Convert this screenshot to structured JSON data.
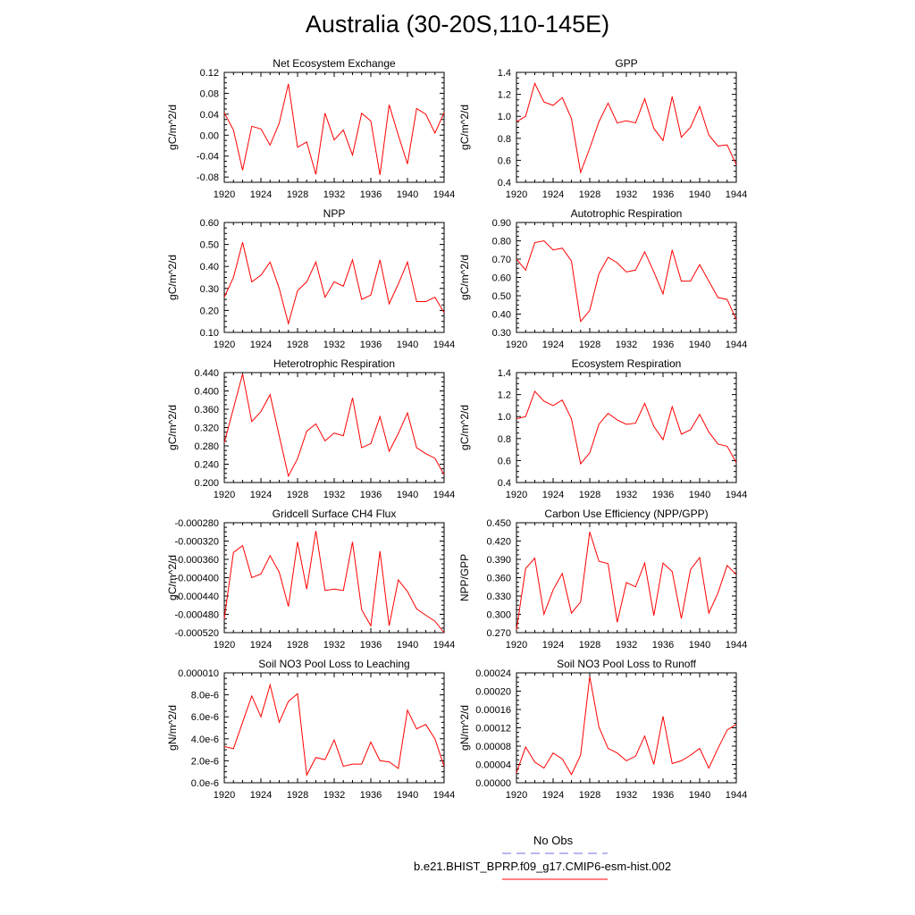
{
  "title": "Australia (30-20S,110-145E)",
  "colors": {
    "model_line": "#ff0000",
    "obs_line": "#6f6fe0",
    "axis": "#000000"
  },
  "legend": {
    "obs_label": "No Obs",
    "model_label": "b.e21.BHIST_BPRP.f09_g17.CMIP6-esm-hist.002"
  },
  "chart_data": [
    {
      "type": "line",
      "title": "Net Ecosystem Exchange",
      "ylabel": "gC/m^2/d",
      "xlim": [
        1920,
        1944
      ],
      "ylim": [
        -0.09,
        0.12
      ],
      "xticks": [
        "1920",
        "1924",
        "1928",
        "1932",
        "1936",
        "1940",
        "1944"
      ],
      "yticks": [
        "-0.08",
        "-0.04",
        "0.00",
        "0.04",
        "0.08",
        "0.12"
      ],
      "x": [
        1920,
        1921,
        1922,
        1923,
        1924,
        1925,
        1926,
        1927,
        1928,
        1929,
        1930,
        1931,
        1932,
        1933,
        1934,
        1935,
        1936,
        1937,
        1938,
        1939,
        1940,
        1941,
        1942,
        1943,
        1944
      ],
      "series": [
        {
          "values": [
            0.043,
            0.01,
            -0.067,
            0.017,
            0.012,
            -0.019,
            0.023,
            0.098,
            -0.023,
            -0.013,
            -0.075,
            0.042,
            -0.009,
            0.01,
            -0.038,
            0.042,
            0.027,
            -0.076,
            0.058,
            0.0,
            -0.055,
            0.051,
            0.04,
            0.004,
            0.043
          ]
        }
      ]
    },
    {
      "type": "line",
      "title": "GPP",
      "ylabel": "gC/m^2/d",
      "xlim": [
        1920,
        1944
      ],
      "ylim": [
        0.4,
        1.4
      ],
      "xticks": [
        "1920",
        "1924",
        "1928",
        "1932",
        "1936",
        "1940",
        "1944"
      ],
      "yticks": [
        "0.4",
        "0.6",
        "0.8",
        "1.0",
        "1.2",
        "1.4"
      ],
      "x": [
        1920,
        1921,
        1922,
        1923,
        1924,
        1925,
        1926,
        1927,
        1928,
        1929,
        1930,
        1931,
        1932,
        1933,
        1934,
        1935,
        1936,
        1937,
        1938,
        1939,
        1940,
        1941,
        1942,
        1943,
        1944
      ],
      "series": [
        {
          "values": [
            0.95,
            1.0,
            1.3,
            1.13,
            1.1,
            1.17,
            0.98,
            0.49,
            0.71,
            0.95,
            1.12,
            0.94,
            0.96,
            0.94,
            1.16,
            0.89,
            0.78,
            1.18,
            0.81,
            0.9,
            1.09,
            0.83,
            0.73,
            0.74,
            0.56
          ]
        }
      ]
    },
    {
      "type": "line",
      "title": "NPP",
      "ylabel": "gC/m^2/d",
      "xlim": [
        1920,
        1944
      ],
      "ylim": [
        0.1,
        0.6
      ],
      "xticks": [
        "1920",
        "1924",
        "1928",
        "1932",
        "1936",
        "1940",
        "1944"
      ],
      "yticks": [
        "0.10",
        "0.20",
        "0.30",
        "0.40",
        "0.50",
        "0.60"
      ],
      "x": [
        1920,
        1921,
        1922,
        1923,
        1924,
        1925,
        1926,
        1927,
        1928,
        1929,
        1930,
        1931,
        1932,
        1933,
        1934,
        1935,
        1936,
        1937,
        1938,
        1939,
        1940,
        1941,
        1942,
        1943,
        1944
      ],
      "series": [
        {
          "values": [
            0.26,
            0.35,
            0.51,
            0.33,
            0.36,
            0.42,
            0.3,
            0.14,
            0.29,
            0.33,
            0.42,
            0.26,
            0.33,
            0.31,
            0.43,
            0.25,
            0.27,
            0.43,
            0.23,
            0.32,
            0.42,
            0.24,
            0.24,
            0.26,
            0.19
          ]
        }
      ]
    },
    {
      "type": "line",
      "title": "Autotrophic Respiration",
      "ylabel": "gC/m^2/d",
      "xlim": [
        1920,
        1944
      ],
      "ylim": [
        0.3,
        0.9
      ],
      "xticks": [
        "1920",
        "1924",
        "1928",
        "1932",
        "1936",
        "1940",
        "1944"
      ],
      "yticks": [
        "0.30",
        "0.40",
        "0.50",
        "0.60",
        "0.70",
        "0.80",
        "0.90"
      ],
      "x": [
        1920,
        1921,
        1922,
        1923,
        1924,
        1925,
        1926,
        1927,
        1928,
        1929,
        1930,
        1931,
        1932,
        1933,
        1934,
        1935,
        1936,
        1937,
        1938,
        1939,
        1940,
        1941,
        1942,
        1943,
        1944
      ],
      "series": [
        {
          "values": [
            0.7,
            0.64,
            0.79,
            0.8,
            0.75,
            0.76,
            0.69,
            0.36,
            0.42,
            0.62,
            0.71,
            0.68,
            0.63,
            0.64,
            0.74,
            0.63,
            0.51,
            0.75,
            0.58,
            0.58,
            0.67,
            0.58,
            0.49,
            0.48,
            0.37
          ]
        }
      ]
    },
    {
      "type": "line",
      "title": "Heterotrophic Respiration",
      "ylabel": "gC/m^2/d",
      "xlim": [
        1920,
        1944
      ],
      "ylim": [
        0.2,
        0.44
      ],
      "xticks": [
        "1920",
        "1924",
        "1928",
        "1932",
        "1936",
        "1940",
        "1944"
      ],
      "yticks": [
        "0.200",
        "0.240",
        "0.280",
        "0.320",
        "0.360",
        "0.400",
        "0.440"
      ],
      "x": [
        1920,
        1921,
        1922,
        1923,
        1924,
        1925,
        1926,
        1927,
        1928,
        1929,
        1930,
        1931,
        1932,
        1933,
        1934,
        1935,
        1936,
        1937,
        1938,
        1939,
        1940,
        1941,
        1942,
        1943,
        1944
      ],
      "series": [
        {
          "values": [
            0.287,
            0.362,
            0.437,
            0.333,
            0.355,
            0.392,
            0.302,
            0.214,
            0.252,
            0.312,
            0.328,
            0.291,
            0.308,
            0.302,
            0.385,
            0.276,
            0.285,
            0.344,
            0.268,
            0.307,
            0.352,
            0.276,
            0.263,
            0.253,
            0.217
          ]
        }
      ]
    },
    {
      "type": "line",
      "title": "Ecosystem Respiration",
      "ylabel": "gC/m^2/d",
      "xlim": [
        1920,
        1944
      ],
      "ylim": [
        0.4,
        1.4
      ],
      "xticks": [
        "1920",
        "1924",
        "1928",
        "1932",
        "1936",
        "1940",
        "1944"
      ],
      "yticks": [
        "0.4",
        "0.6",
        "0.8",
        "1.0",
        "1.2",
        "1.4"
      ],
      "x": [
        1920,
        1921,
        1922,
        1923,
        1924,
        1925,
        1926,
        1927,
        1928,
        1929,
        1930,
        1931,
        1932,
        1933,
        1934,
        1935,
        1936,
        1937,
        1938,
        1939,
        1940,
        1941,
        1942,
        1943,
        1944
      ],
      "series": [
        {
          "values": [
            0.98,
            1.0,
            1.23,
            1.14,
            1.1,
            1.15,
            0.98,
            0.57,
            0.67,
            0.93,
            1.03,
            0.97,
            0.93,
            0.94,
            1.12,
            0.91,
            0.79,
            1.09,
            0.84,
            0.88,
            1.02,
            0.86,
            0.75,
            0.73,
            0.58
          ]
        }
      ]
    },
    {
      "type": "line",
      "title": "Gridcell Surface CH4 Flux",
      "ylabel": "gC/m^2/d",
      "xlim": [
        1920,
        1944
      ],
      "ylim": [
        -0.00052,
        -0.00028
      ],
      "xticks": [
        "1920",
        "1924",
        "1928",
        "1932",
        "1936",
        "1940",
        "1944"
      ],
      "yticks": [
        "-0.000520",
        "-0.000480",
        "-0.000440",
        "-0.000400",
        "-0.000360",
        "-0.000320",
        "-0.000280"
      ],
      "x": [
        1920,
        1921,
        1922,
        1923,
        1924,
        1925,
        1926,
        1927,
        1928,
        1929,
        1930,
        1931,
        1932,
        1933,
        1934,
        1935,
        1936,
        1937,
        1938,
        1939,
        1940,
        1941,
        1942,
        1943,
        1944
      ],
      "series": [
        {
          "values": [
            -0.00049,
            -0.000345,
            -0.00033,
            -0.0004,
            -0.000392,
            -0.000352,
            -0.000388,
            -0.000463,
            -0.000322,
            -0.000425,
            -0.000298,
            -0.000428,
            -0.000425,
            -0.000428,
            -0.000322,
            -0.00047,
            -0.000505,
            -0.000342,
            -0.000505,
            -0.000405,
            -0.00043,
            -0.000468,
            -0.000482,
            -0.000495,
            -0.00052
          ]
        }
      ]
    },
    {
      "type": "line",
      "title": "Carbon Use Efficiency (NPP/GPP)",
      "ylabel": "NPP/GPP",
      "xlim": [
        1920,
        1944
      ],
      "ylim": [
        0.27,
        0.45
      ],
      "xticks": [
        "1920",
        "1924",
        "1928",
        "1932",
        "1936",
        "1940",
        "1944"
      ],
      "yticks": [
        "0.270",
        "0.300",
        "0.330",
        "0.360",
        "0.390",
        "0.420",
        "0.450"
      ],
      "x": [
        1920,
        1921,
        1922,
        1923,
        1924,
        1925,
        1926,
        1927,
        1928,
        1929,
        1930,
        1931,
        1932,
        1933,
        1934,
        1935,
        1936,
        1937,
        1938,
        1939,
        1940,
        1941,
        1942,
        1943,
        1944
      ],
      "series": [
        {
          "values": [
            0.275,
            0.375,
            0.392,
            0.3,
            0.34,
            0.367,
            0.302,
            0.32,
            0.435,
            0.387,
            0.383,
            0.287,
            0.352,
            0.345,
            0.384,
            0.298,
            0.384,
            0.37,
            0.293,
            0.373,
            0.393,
            0.302,
            0.335,
            0.38,
            0.365
          ]
        }
      ]
    },
    {
      "type": "line",
      "title": "Soil NO3 Pool Loss to Leaching",
      "ylabel": "gN/m^2/d",
      "xlim": [
        1920,
        1944
      ],
      "ylim": [
        0,
        1e-05
      ],
      "xticks": [
        "1920",
        "1924",
        "1928",
        "1932",
        "1936",
        "1940",
        "1944"
      ],
      "yticks": [
        "0.0e-6",
        "2.0e-6",
        "4.0e-6",
        "6.0e-6",
        "8.0e-6",
        "0.000010"
      ],
      "x": [
        1920,
        1921,
        1922,
        1923,
        1924,
        1925,
        1926,
        1927,
        1928,
        1929,
        1930,
        1931,
        1932,
        1933,
        1934,
        1935,
        1936,
        1937,
        1938,
        1939,
        1940,
        1941,
        1942,
        1943,
        1944
      ],
      "series": [
        {
          "values": [
            3.3e-06,
            3.1e-06,
            5.5e-06,
            7.9e-06,
            6e-06,
            8.9e-06,
            5.5e-06,
            7.4e-06,
            8.1e-06,
            7e-07,
            2.3e-06,
            2.1e-06,
            3.9e-06,
            1.5e-06,
            1.7e-06,
            1.7e-06,
            3.7e-06,
            2e-06,
            1.9e-06,
            1.3e-06,
            6.6e-06,
            4.9e-06,
            5.3e-06,
            4e-06,
            1.5e-06
          ]
        }
      ]
    },
    {
      "type": "line",
      "title": "Soil NO3 Pool Loss to Runoff",
      "ylabel": "gN/m^2/d",
      "xlim": [
        1920,
        1944
      ],
      "ylim": [
        0,
        0.00024
      ],
      "xticks": [
        "1920",
        "1924",
        "1928",
        "1932",
        "1936",
        "1940",
        "1944"
      ],
      "yticks": [
        "0.00000",
        "0.00004",
        "0.00008",
        "0.00012",
        "0.00016",
        "0.00020",
        "0.00024"
      ],
      "x": [
        1920,
        1921,
        1922,
        1923,
        1924,
        1925,
        1926,
        1927,
        1928,
        1929,
        1930,
        1931,
        1932,
        1933,
        1934,
        1935,
        1936,
        1937,
        1938,
        1939,
        1940,
        1941,
        1942,
        1943,
        1944
      ],
      "series": [
        {
          "values": [
            2.2e-05,
            7.8e-05,
            4.5e-05,
            3.2e-05,
            6.5e-05,
            5.2e-05,
            1.8e-05,
            6e-05,
            0.000232,
            0.000122,
            7.5e-05,
            6.5e-05,
            4.8e-05,
            5.8e-05,
            0.000102,
            4e-05,
            0.000145,
            4.2e-05,
            4.8e-05,
            6e-05,
            7.5e-05,
            3.2e-05,
            7.5e-05,
            0.000115,
            0.000128
          ]
        }
      ]
    }
  ]
}
